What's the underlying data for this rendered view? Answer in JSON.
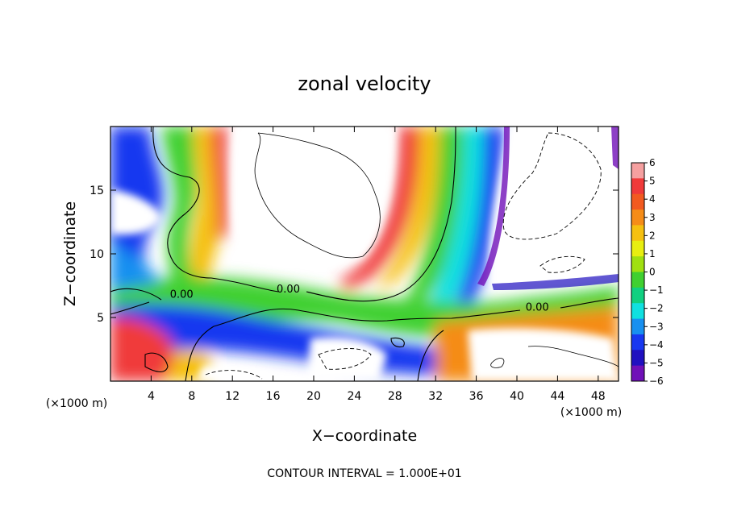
{
  "chart_data": {
    "type": "heatmap",
    "title": "zonal velocity",
    "xlabel": "X−coordinate",
    "ylabel": "Z−coordinate",
    "x_unit_left": "(×1000 m)",
    "x_unit_right": "(×1000 m)",
    "xlim": [
      0,
      50
    ],
    "ylim": [
      0,
      20
    ],
    "x_ticks": [
      4,
      8,
      12,
      16,
      20,
      24,
      28,
      32,
      36,
      40,
      44,
      48
    ],
    "y_ticks": [
      5,
      10,
      15
    ],
    "colorbar": {
      "levels": [
        6,
        5,
        4,
        3,
        2,
        1,
        0,
        -1,
        -2,
        -3,
        -4,
        -5,
        -6
      ],
      "labels": [
        "6",
        "5",
        "4",
        "3",
        "2",
        "1",
        "0",
        "−1",
        "−2",
        "−3",
        "−4",
        "−5",
        "−6"
      ],
      "colors": [
        "#f5a0a0",
        "#f03a3a",
        "#f25a20",
        "#f58c18",
        "#f5c010",
        "#e8ee10",
        "#a0e010",
        "#40d030",
        "#10d080",
        "#10e0e0",
        "#1890f0",
        "#1838f0",
        "#2010c0",
        "#7010b8"
      ]
    },
    "contour_labels": [
      {
        "x": 7,
        "y": 6.8,
        "text": "0.00"
      },
      {
        "x": 17.5,
        "y": 7.2,
        "text": "0.00"
      },
      {
        "x": 42,
        "y": 5.8,
        "text": "0.00"
      }
    ],
    "footer": "CONTOUR INTERVAL = 1.000E+01"
  }
}
